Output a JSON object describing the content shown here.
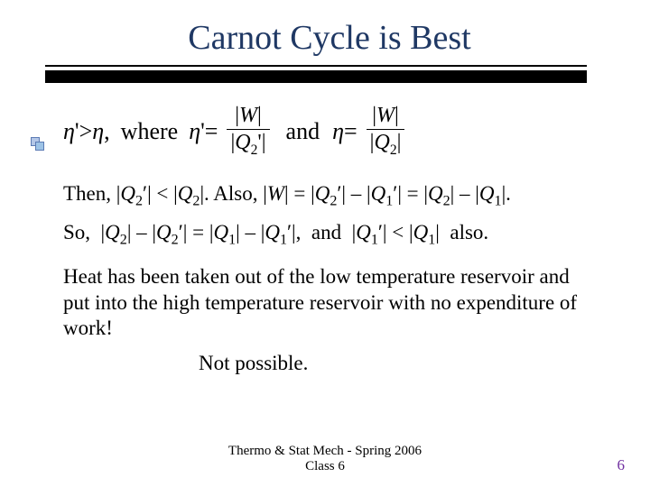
{
  "title": "Carnot Cycle is Best",
  "colors": {
    "title": "#1f3864",
    "text": "#000000",
    "pagenum": "#7030a0",
    "rule": "#000000",
    "background": "#ffffff"
  },
  "formula": {
    "lhs_eta_prime": "η",
    "prime": "'",
    "gt": ">",
    "eta": "η",
    "comma": ",",
    "where": "where",
    "eq": "=",
    "and": "and",
    "W_abs": "|W|",
    "Q2_abs": "|Q",
    "Q2_sub": "2",
    "Q2p_abs_open": "|Q",
    "Q2p_sub": "2",
    "Q2p_prime": "'",
    "bar_close": "|"
  },
  "line1": "Then, |Q₂′| < |Q₂|. Also, |W| = |Q₂′| – |Q₁′| = |Q₂| – |Q₁|.",
  "line2": "So,  |Q₂| – |Q₂′| = |Q₁| – |Q₁′|,  and  |Q₁′| < |Q₁|  also.",
  "para": "Heat has been taken out of the low temperature reservoir and put into the high temperature reservoir with no expenditure of work!",
  "notpossible": "Not possible.",
  "footer_line1": "Thermo & Stat Mech - Spring 2006",
  "footer_line2": "Class 6",
  "pagenum": "6"
}
